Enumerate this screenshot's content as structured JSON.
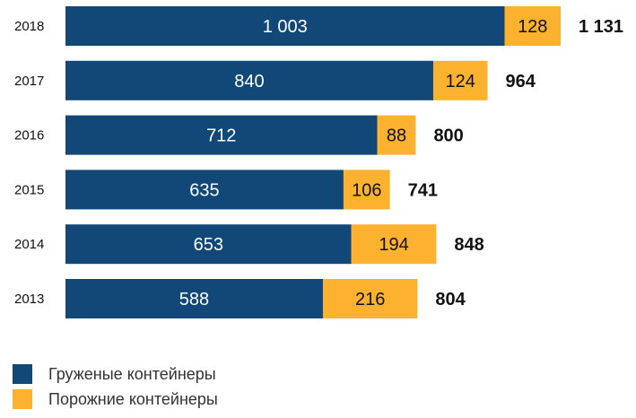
{
  "chart_data": {
    "type": "bar",
    "orientation": "horizontal",
    "stacked": true,
    "categories": [
      "2018",
      "2017",
      "2016",
      "2015",
      "2014",
      "2013"
    ],
    "series": [
      {
        "name": "Груженые контейнеры",
        "values": [
          1003,
          840,
          712,
          635,
          653,
          588
        ],
        "labels": [
          "1 003",
          "840",
          "712",
          "635",
          "653",
          "588"
        ],
        "color": "#114877"
      },
      {
        "name": "Порожние контейнеры",
        "values": [
          128,
          124,
          88,
          106,
          194,
          216
        ],
        "labels": [
          "128",
          "124",
          "88",
          "106",
          "194",
          "216"
        ],
        "color": "#FDB22F"
      }
    ],
    "totals": {
      "values": [
        1131,
        964,
        800,
        741,
        848,
        804
      ],
      "labels": [
        "1 131",
        "964",
        "800",
        "741",
        "848",
        "804"
      ]
    },
    "xlim": [
      0,
      1131
    ],
    "grid": false,
    "legend_position": "bottom-left"
  },
  "legend": {
    "items": [
      {
        "label": "Груженые контейнеры",
        "color": "#114877"
      },
      {
        "label": "Порожние контейнеры",
        "color": "#FDB22F"
      }
    ]
  }
}
